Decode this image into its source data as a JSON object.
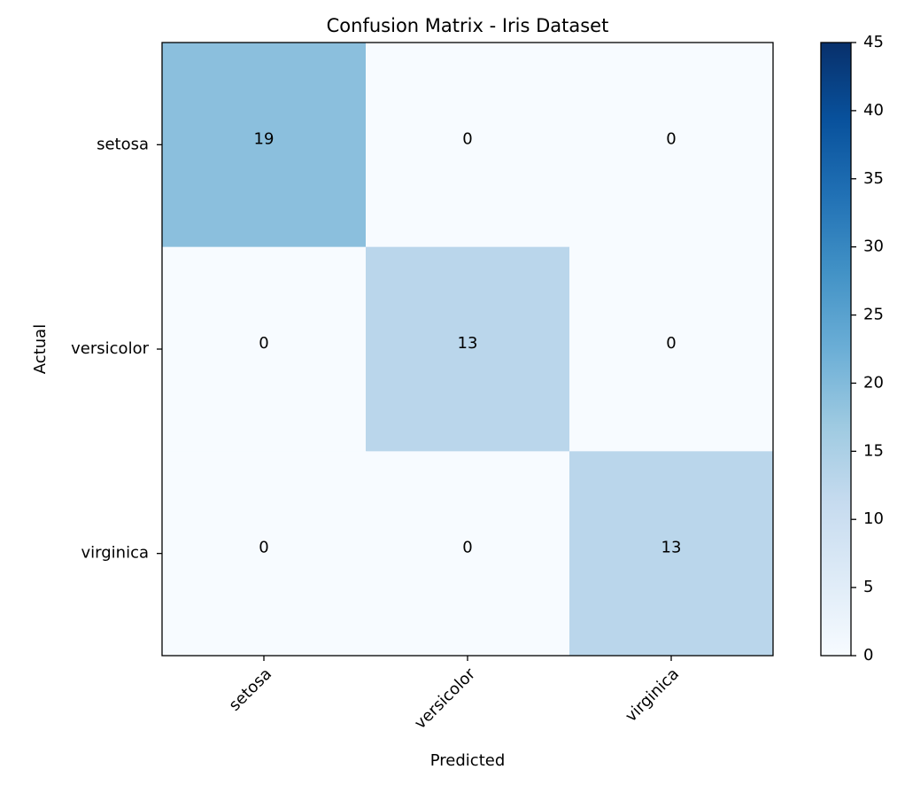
{
  "chart_data": {
    "type": "heatmap",
    "title": "Confusion Matrix - Iris Dataset",
    "xlabel": "Predicted",
    "ylabel": "Actual",
    "x_categories": [
      "setosa",
      "versicolor",
      "virginica"
    ],
    "y_categories": [
      "setosa",
      "versicolor",
      "virginica"
    ],
    "values": [
      [
        19,
        0,
        0
      ],
      [
        0,
        13,
        0
      ],
      [
        0,
        0,
        13
      ]
    ],
    "colormap": [
      "#f7fbff",
      "#deebf7",
      "#c6dbef",
      "#9ecae1",
      "#6baed6",
      "#4292c6",
      "#2171b5",
      "#08519c",
      "#08306b"
    ],
    "clim": [
      0,
      45
    ],
    "cticks": [
      0,
      5,
      10,
      15,
      20,
      25,
      30,
      35,
      40,
      45
    ]
  }
}
